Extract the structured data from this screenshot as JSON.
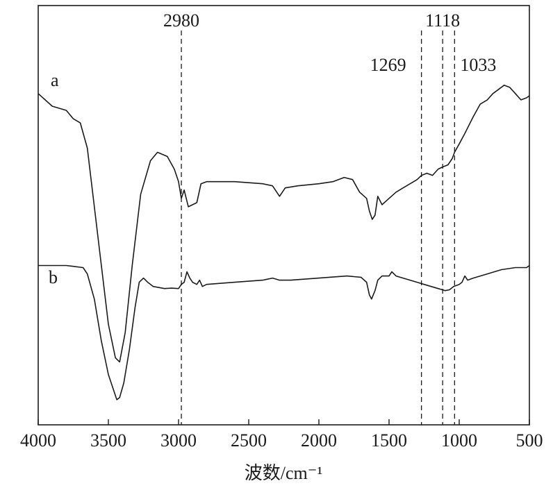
{
  "chart_data": {
    "type": "line",
    "title": "",
    "xlabel": "波数/cm⁻¹",
    "ylabel": "",
    "xlim": [
      4000,
      500
    ],
    "x_reversed": true,
    "y_ticks_shown": false,
    "grid": false,
    "x_ticks": [
      4000,
      3500,
      3000,
      2500,
      2000,
      1500,
      1000,
      500
    ],
    "x_tick_labels": [
      "4000",
      "3500",
      "3000",
      "2500",
      "2000",
      "1500",
      "1000",
      "500"
    ],
    "reference_lines": [
      {
        "x": 2980,
        "label": "2980",
        "label_position": "top"
      },
      {
        "x": 1269,
        "label": "1269",
        "label_position": "upper"
      },
      {
        "x": 1118,
        "label": "1118",
        "label_position": "top"
      },
      {
        "x": 1033,
        "label": "1033",
        "label_position": "upper"
      }
    ],
    "series": [
      {
        "name": "a",
        "points": [
          [
            4000,
            0.79
          ],
          [
            3900,
            0.76
          ],
          [
            3800,
            0.75
          ],
          [
            3750,
            0.73
          ],
          [
            3700,
            0.72
          ],
          [
            3650,
            0.66
          ],
          [
            3600,
            0.52
          ],
          [
            3550,
            0.38
          ],
          [
            3500,
            0.24
          ],
          [
            3450,
            0.16
          ],
          [
            3420,
            0.15
          ],
          [
            3380,
            0.22
          ],
          [
            3330,
            0.38
          ],
          [
            3270,
            0.55
          ],
          [
            3200,
            0.63
          ],
          [
            3150,
            0.65
          ],
          [
            3080,
            0.64
          ],
          [
            3030,
            0.61
          ],
          [
            3000,
            0.58
          ],
          [
            2980,
            0.54
          ],
          [
            2960,
            0.56
          ],
          [
            2930,
            0.52
          ],
          [
            2900,
            0.525
          ],
          [
            2870,
            0.53
          ],
          [
            2840,
            0.575
          ],
          [
            2800,
            0.58
          ],
          [
            2600,
            0.58
          ],
          [
            2400,
            0.575
          ],
          [
            2330,
            0.57
          ],
          [
            2280,
            0.545
          ],
          [
            2240,
            0.565
          ],
          [
            2150,
            0.57
          ],
          [
            2000,
            0.575
          ],
          [
            1900,
            0.58
          ],
          [
            1820,
            0.59
          ],
          [
            1760,
            0.585
          ],
          [
            1710,
            0.555
          ],
          [
            1660,
            0.54
          ],
          [
            1640,
            0.51
          ],
          [
            1620,
            0.49
          ],
          [
            1600,
            0.5
          ],
          [
            1580,
            0.545
          ],
          [
            1550,
            0.525
          ],
          [
            1500,
            0.54
          ],
          [
            1450,
            0.555
          ],
          [
            1400,
            0.565
          ],
          [
            1350,
            0.575
          ],
          [
            1300,
            0.585
          ],
          [
            1269,
            0.595
          ],
          [
            1230,
            0.6
          ],
          [
            1190,
            0.595
          ],
          [
            1150,
            0.61
          ],
          [
            1118,
            0.615
          ],
          [
            1080,
            0.62
          ],
          [
            1050,
            0.635
          ],
          [
            1033,
            0.65
          ],
          [
            1000,
            0.67
          ],
          [
            960,
            0.695
          ],
          [
            900,
            0.735
          ],
          [
            850,
            0.765
          ],
          [
            800,
            0.775
          ],
          [
            760,
            0.79
          ],
          [
            720,
            0.8
          ],
          [
            680,
            0.81
          ],
          [
            640,
            0.805
          ],
          [
            600,
            0.79
          ],
          [
            560,
            0.775
          ],
          [
            520,
            0.78
          ],
          [
            500,
            0.785
          ]
        ]
      },
      {
        "name": "b",
        "points": [
          [
            4000,
            0.38
          ],
          [
            3900,
            0.38
          ],
          [
            3800,
            0.38
          ],
          [
            3750,
            0.378
          ],
          [
            3680,
            0.375
          ],
          [
            3650,
            0.36
          ],
          [
            3600,
            0.3
          ],
          [
            3550,
            0.2
          ],
          [
            3500,
            0.12
          ],
          [
            3460,
            0.08
          ],
          [
            3440,
            0.06
          ],
          [
            3420,
            0.065
          ],
          [
            3390,
            0.1
          ],
          [
            3350,
            0.18
          ],
          [
            3310,
            0.28
          ],
          [
            3280,
            0.34
          ],
          [
            3250,
            0.35
          ],
          [
            3220,
            0.34
          ],
          [
            3180,
            0.33
          ],
          [
            3100,
            0.325
          ],
          [
            3050,
            0.326
          ],
          [
            3000,
            0.325
          ],
          [
            2980,
            0.335
          ],
          [
            2960,
            0.34
          ],
          [
            2940,
            0.365
          ],
          [
            2920,
            0.35
          ],
          [
            2900,
            0.34
          ],
          [
            2870,
            0.335
          ],
          [
            2850,
            0.345
          ],
          [
            2830,
            0.33
          ],
          [
            2800,
            0.335
          ],
          [
            2600,
            0.34
          ],
          [
            2400,
            0.345
          ],
          [
            2330,
            0.35
          ],
          [
            2280,
            0.345
          ],
          [
            2200,
            0.345
          ],
          [
            2000,
            0.35
          ],
          [
            1800,
            0.355
          ],
          [
            1700,
            0.352
          ],
          [
            1660,
            0.34
          ],
          [
            1640,
            0.31
          ],
          [
            1625,
            0.3
          ],
          [
            1600,
            0.32
          ],
          [
            1580,
            0.345
          ],
          [
            1550,
            0.355
          ],
          [
            1500,
            0.355
          ],
          [
            1480,
            0.365
          ],
          [
            1450,
            0.355
          ],
          [
            1400,
            0.35
          ],
          [
            1350,
            0.345
          ],
          [
            1300,
            0.34
          ],
          [
            1250,
            0.335
          ],
          [
            1200,
            0.33
          ],
          [
            1150,
            0.325
          ],
          [
            1118,
            0.322
          ],
          [
            1100,
            0.32
          ],
          [
            1070,
            0.322
          ],
          [
            1040,
            0.33
          ],
          [
            1000,
            0.335
          ],
          [
            980,
            0.34
          ],
          [
            960,
            0.355
          ],
          [
            940,
            0.345
          ],
          [
            900,
            0.35
          ],
          [
            850,
            0.355
          ],
          [
            800,
            0.36
          ],
          [
            700,
            0.37
          ],
          [
            600,
            0.375
          ],
          [
            520,
            0.375
          ],
          [
            500,
            0.38
          ]
        ]
      }
    ]
  }
}
